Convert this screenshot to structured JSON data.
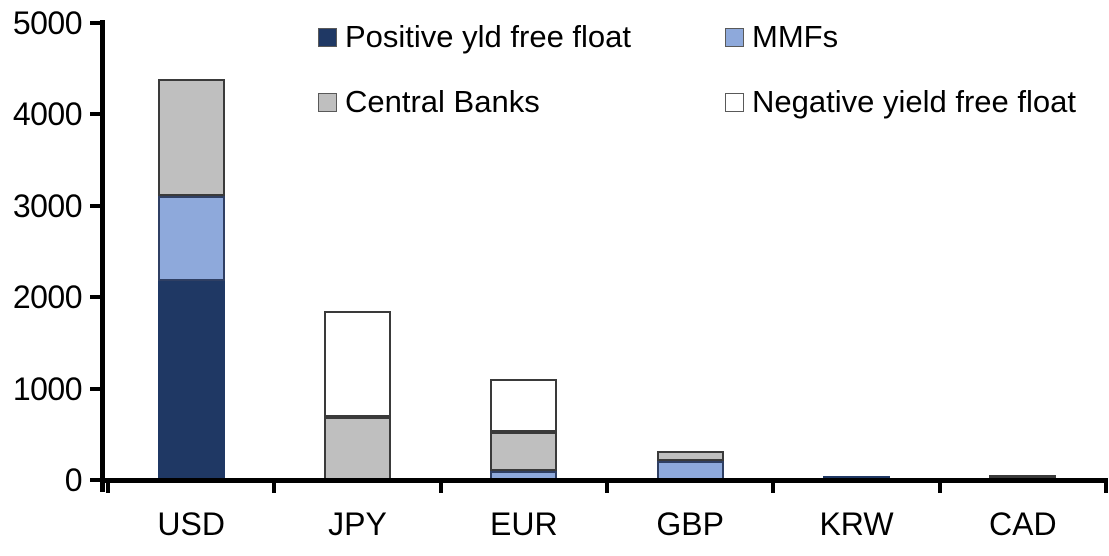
{
  "chart_data": {
    "type": "bar",
    "stacked": true,
    "title": "",
    "xlabel": "",
    "ylabel": "",
    "categories": [
      "USD",
      "JPY",
      "EUR",
      "GBP",
      "KRW",
      "CAD"
    ],
    "series": [
      {
        "name": "Positive yld free float",
        "color": "#1F3864",
        "border_color": "#1F3864",
        "values": [
          2180,
          0,
          0,
          0,
          40,
          30
        ]
      },
      {
        "name": "MMFs",
        "color": "#8EA9DB",
        "border_color": "#2F3F63",
        "values": [
          930,
          0,
          100,
          205,
          0,
          0
        ]
      },
      {
        "name": "Central Banks",
        "color": "#BFBFBF",
        "border_color": "#3A3A3A",
        "values": [
          1280,
          690,
          430,
          115,
          0,
          30
        ]
      },
      {
        "name": "Negative yield free float",
        "color": "#FFFFFF",
        "border_color": "#3A3A3A",
        "values": [
          0,
          1160,
          580,
          0,
          0,
          0
        ]
      }
    ],
    "totals_by_category": [
      4390,
      1850,
      1110,
      320,
      40,
      60
    ],
    "ylim": [
      0,
      5000
    ],
    "yticks": [
      0,
      1000,
      2000,
      3000,
      4000,
      5000
    ],
    "ytick_labels": [
      "0",
      "1000",
      "2000",
      "3000",
      "4000",
      "5000"
    ],
    "grid": false,
    "legend_position": "top",
    "axis_color": "#000000",
    "background_color": "#FFFFFF"
  }
}
